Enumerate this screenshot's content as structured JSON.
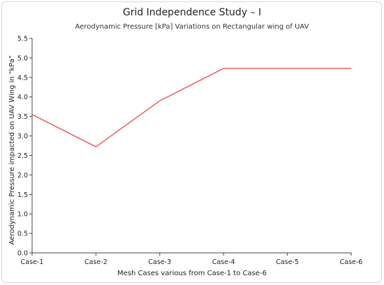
{
  "chart_data": {
    "type": "line",
    "title": "Grid Independence Study – I",
    "subtitle": "Aerodynamic Pressure [kPa] Variations on Rectangular wing of UAV",
    "xlabel": "Mesh Cases various from Case-1 to Case-6",
    "ylabel": "Aerodynamic Pressure impacted on UAV Wing in \"kPa\"",
    "categories": [
      "Case-1",
      "Case-2",
      "Case-3",
      "Case-4",
      "Case-5",
      "Case-6"
    ],
    "values": [
      3.55,
      2.72,
      3.9,
      4.73,
      4.73,
      4.73
    ],
    "ylim": [
      0,
      5.5
    ],
    "yticks": [
      "0.0",
      "0.5",
      "1.0",
      "1.5",
      "2.0",
      "2.5",
      "3.0",
      "3.5",
      "4.0",
      "4.5",
      "5.0",
      "5.5"
    ],
    "line_color": "#f05050",
    "grid": false
  }
}
